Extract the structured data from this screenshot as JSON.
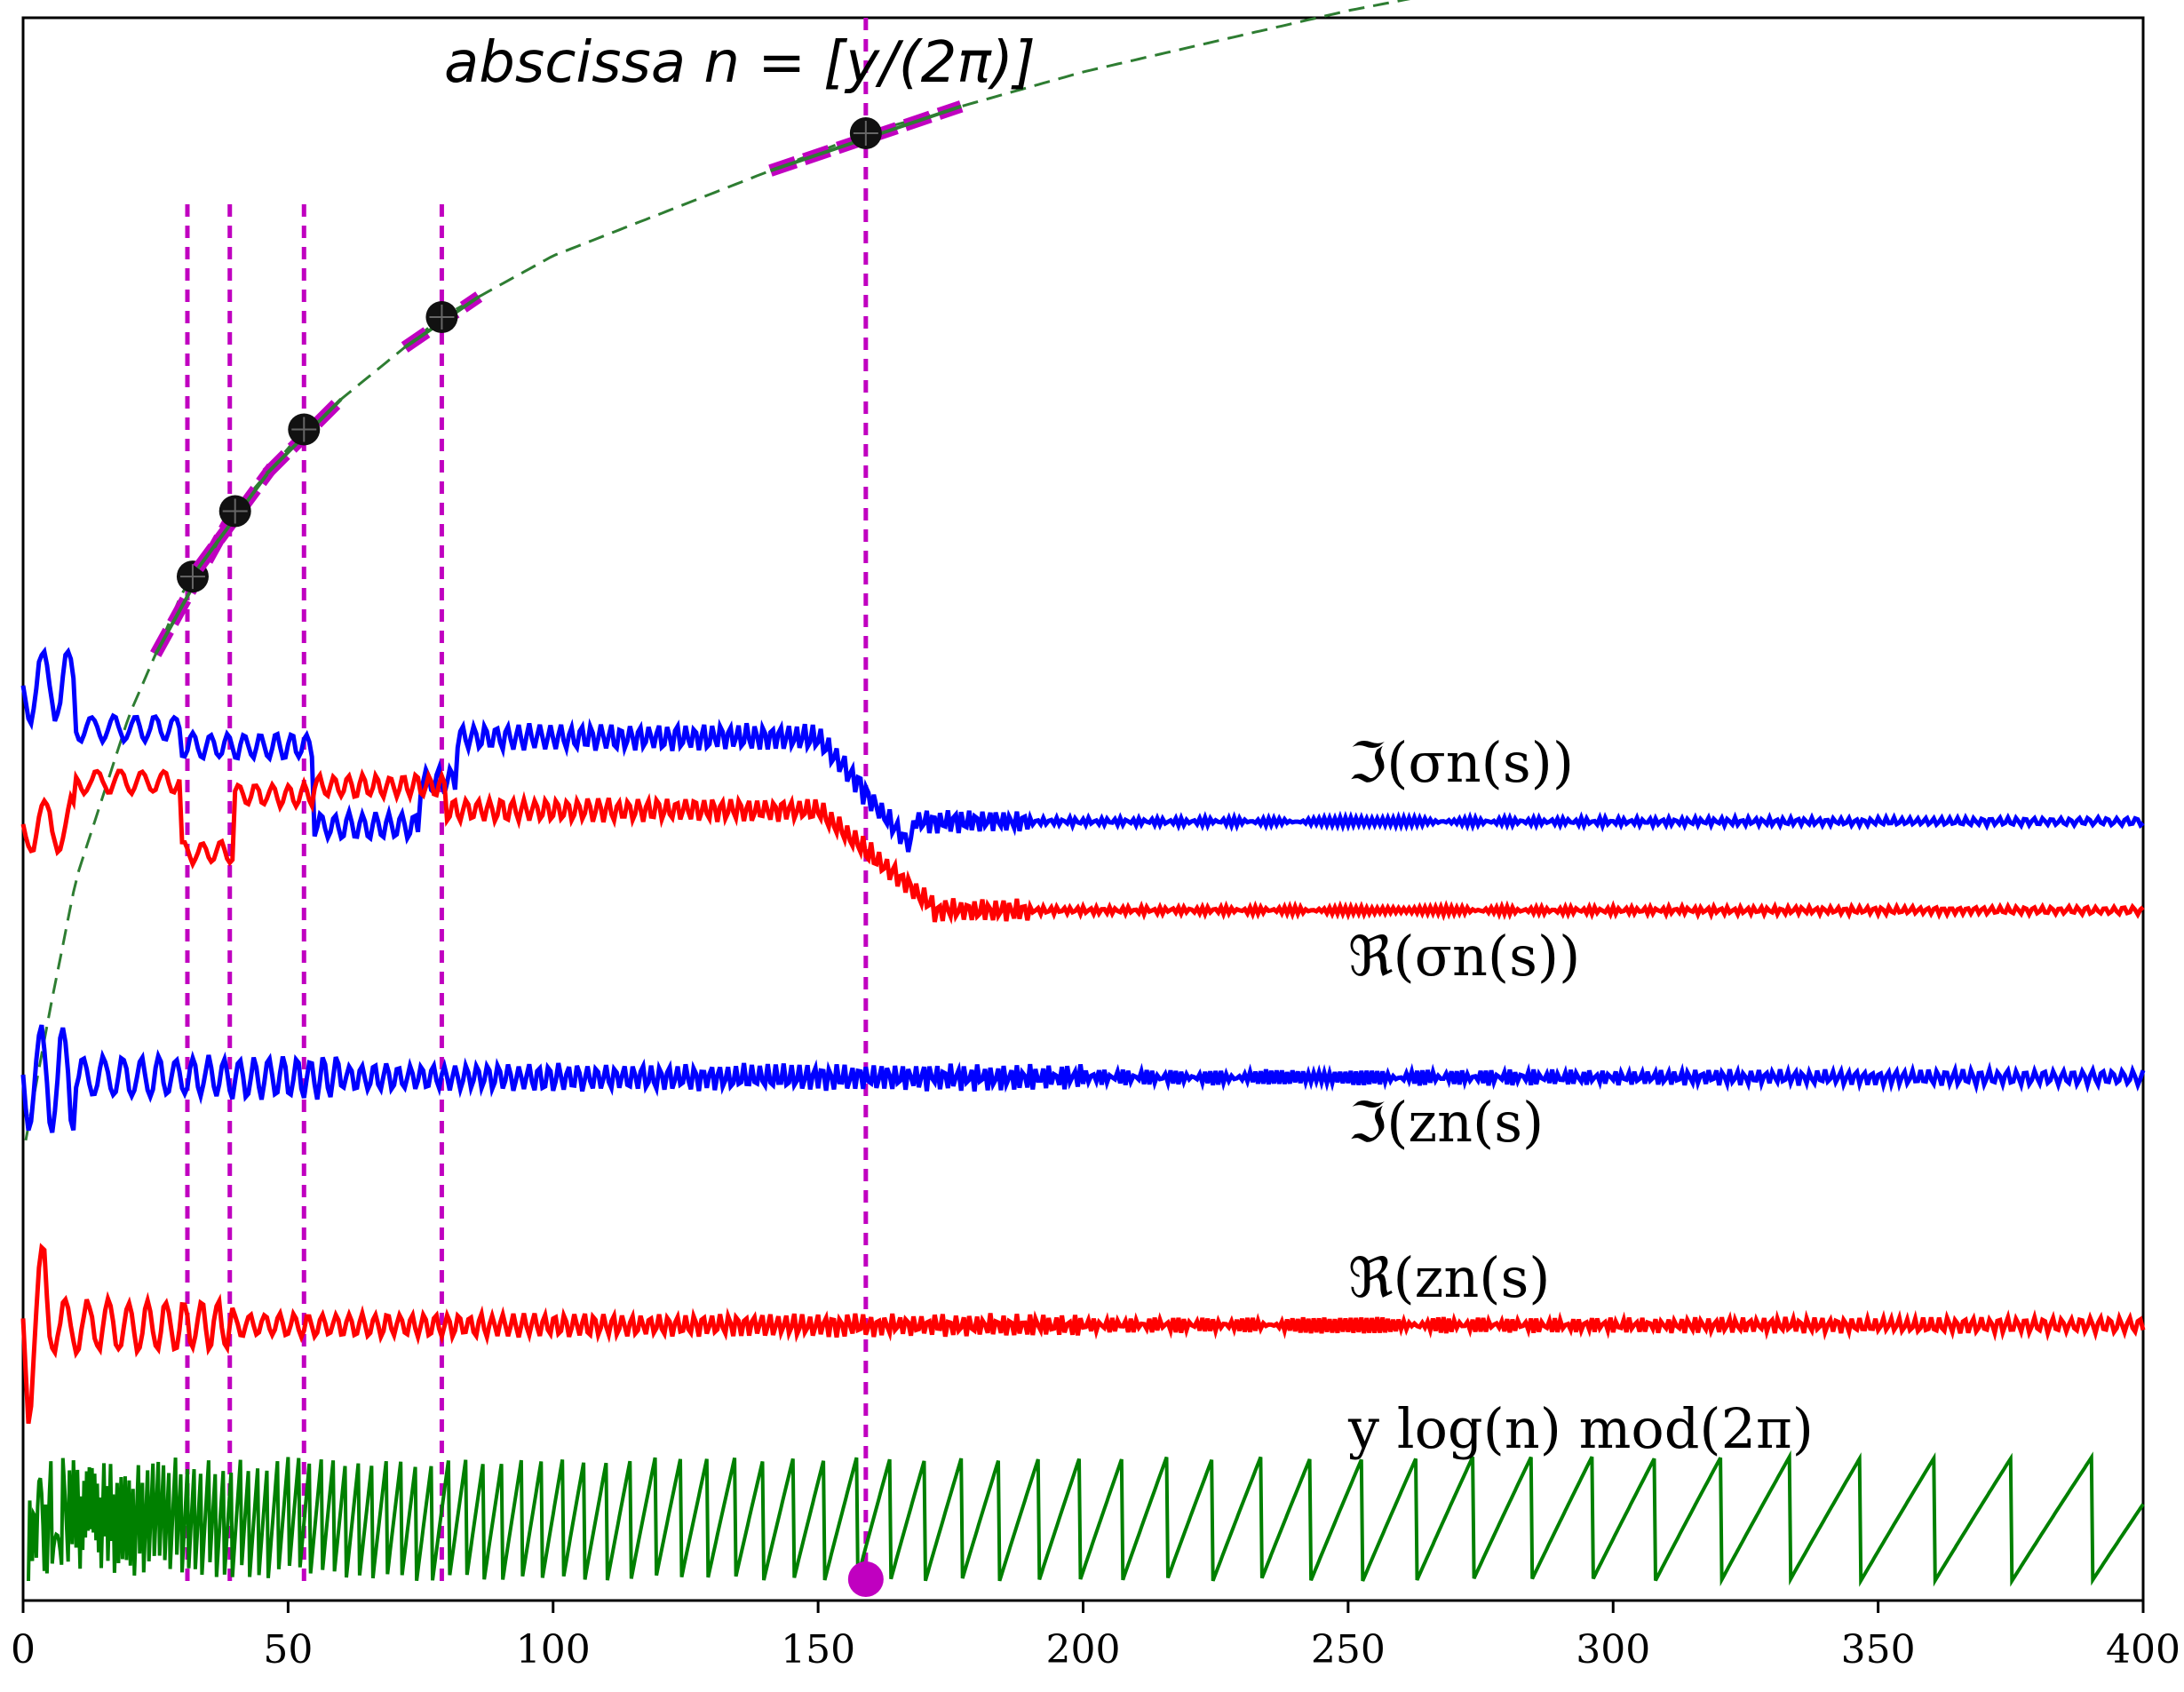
{
  "chart_data": {
    "type": "line",
    "title": "abscissa n  =  [y/(2π)]",
    "xlabel": "",
    "ylabel": "",
    "xlim": [
      0,
      400
    ],
    "x_ticks": [
      "0",
      "50",
      "100",
      "150",
      "200",
      "250",
      "300",
      "350",
      "400"
    ],
    "y_ticks_shown": false,
    "grid": false,
    "vertical_markers_x": [
      31,
      39,
      53,
      79,
      159
    ],
    "highlight_points_x": [
      32,
      40,
      53,
      79,
      159
    ],
    "highlight_point_zero_x": 159,
    "curve": {
      "name": "abscissa n = [y/(2π)]",
      "style": "dashed",
      "color": "#2e7d32",
      "x": [
        0,
        5,
        10,
        20,
        30,
        40,
        53,
        79,
        100,
        159,
        200,
        250,
        300
      ],
      "y": [
        0.0,
        0.14,
        0.27,
        0.43,
        0.55,
        0.63,
        0.71,
        0.82,
        0.88,
        1.0,
        1.06,
        1.12,
        1.17
      ]
    },
    "series": [
      {
        "name": "ℑ(σn(s))",
        "color": "#0000ff",
        "offset_level": 0.55,
        "description_level_after_160": 0.55
      },
      {
        "name": "ℜ(σn(s))",
        "color": "#ff0000",
        "offset_level": 0.5,
        "description_level_after_160": 0.5
      },
      {
        "name": "ℑ(zn(s)",
        "color": "#0000ff",
        "offset_level": 0.37
      },
      {
        "name": "ℜ(zn(s)",
        "color": "#ff0000",
        "offset_level": 0.22
      },
      {
        "name": "y log(n) mod(2π)",
        "color": "#008000",
        "range": [
          0,
          6.283
        ]
      }
    ],
    "labels": {
      "im_sigma": "ℑ(σn(s))",
      "re_sigma": "ℜ(σn(s))",
      "im_z": "ℑ(zn(s)",
      "re_z": "ℜ(zn(s)",
      "ylog": "y log(n) mod(2π)"
    },
    "colors": {
      "blue": "#0000ff",
      "red": "#ff0000",
      "green": "#008000",
      "magenta": "#c000c0",
      "dashed_green": "#2e7d32"
    }
  }
}
